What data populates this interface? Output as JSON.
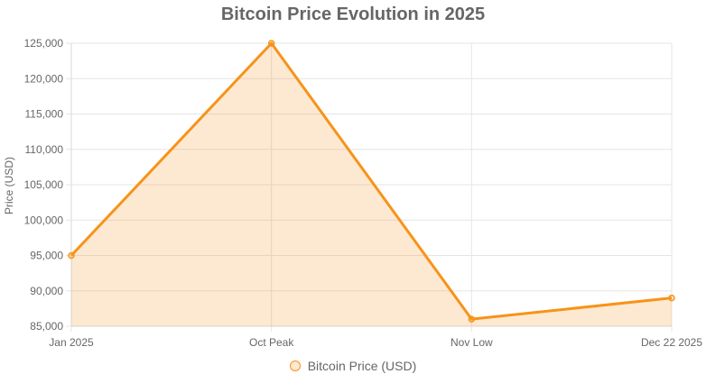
{
  "chart_data": {
    "type": "area",
    "title": "Bitcoin Price Evolution in 2025",
    "xlabel": "",
    "ylabel": "Price (USD)",
    "categories": [
      "Jan 2025",
      "Oct Peak",
      "Nov Low",
      "Dec 22 2025"
    ],
    "series": [
      {
        "name": "Bitcoin Price (USD)",
        "values": [
          95000,
          125000,
          86000,
          89000
        ],
        "color": "#f7931a",
        "fill": "rgba(247, 147, 26, 0.2)"
      }
    ],
    "ylim": [
      85000,
      125000
    ],
    "yticks": [
      "85,000",
      "90,000",
      "95,000",
      "100,000",
      "105,000",
      "110,000",
      "115,000",
      "120,000",
      "125,000"
    ],
    "grid": true,
    "legend_position": "bottom"
  }
}
